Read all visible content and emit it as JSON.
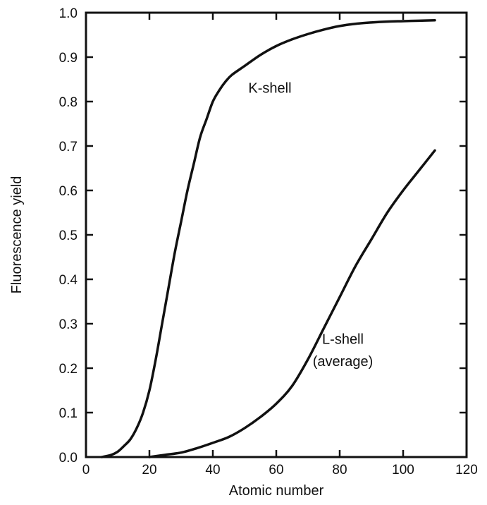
{
  "chart_data": {
    "type": "line",
    "title": "",
    "xlabel": "Atomic number",
    "ylabel": "Fluorescence yield",
    "xlim": [
      0,
      120
    ],
    "ylim": [
      0.0,
      1.0
    ],
    "xticks": [
      0,
      20,
      40,
      60,
      80,
      100,
      120
    ],
    "xtick_labels": [
      "0",
      "20",
      "40",
      "60",
      "80",
      "100",
      "120"
    ],
    "yticks": [
      0.0,
      0.1,
      0.2,
      0.3,
      0.4,
      0.5,
      0.6,
      0.7,
      0.8,
      0.9,
      1.0
    ],
    "ytick_labels": [
      "0.0",
      "0.1",
      "0.2",
      "0.3",
      "0.4",
      "0.5",
      "0.6",
      "0.7",
      "0.8",
      "0.9",
      "1.0"
    ],
    "grid": false,
    "series": [
      {
        "name": "K-shell",
        "x": [
          5,
          8,
          10,
          12,
          14,
          16,
          18,
          20,
          22,
          24,
          26,
          28,
          30,
          32,
          34,
          36,
          38,
          40,
          42,
          44,
          46,
          50,
          55,
          60,
          65,
          70,
          75,
          80,
          85,
          90,
          95,
          100,
          105,
          110
        ],
        "y": [
          0.0,
          0.005,
          0.012,
          0.025,
          0.04,
          0.065,
          0.1,
          0.15,
          0.22,
          0.3,
          0.38,
          0.46,
          0.53,
          0.6,
          0.66,
          0.72,
          0.76,
          0.8,
          0.825,
          0.845,
          0.86,
          0.88,
          0.905,
          0.925,
          0.94,
          0.952,
          0.962,
          0.97,
          0.975,
          0.978,
          0.98,
          0.981,
          0.982,
          0.983
        ]
      },
      {
        "name": "L-shell (average)",
        "x": [
          20,
          25,
          30,
          35,
          40,
          45,
          50,
          55,
          60,
          65,
          70,
          75,
          80,
          85,
          90,
          95,
          100,
          105,
          110
        ],
        "y": [
          0.0,
          0.005,
          0.01,
          0.02,
          0.032,
          0.045,
          0.065,
          0.09,
          0.12,
          0.16,
          0.22,
          0.29,
          0.36,
          0.43,
          0.49,
          0.55,
          0.6,
          0.645,
          0.69
        ]
      }
    ],
    "annotations": [
      {
        "text": "K-shell",
        "x": 58,
        "y": 0.82
      },
      {
        "text": "L-shell",
        "x": 81,
        "y": 0.255
      },
      {
        "text": "(average)",
        "x": 81,
        "y": 0.205
      }
    ]
  }
}
